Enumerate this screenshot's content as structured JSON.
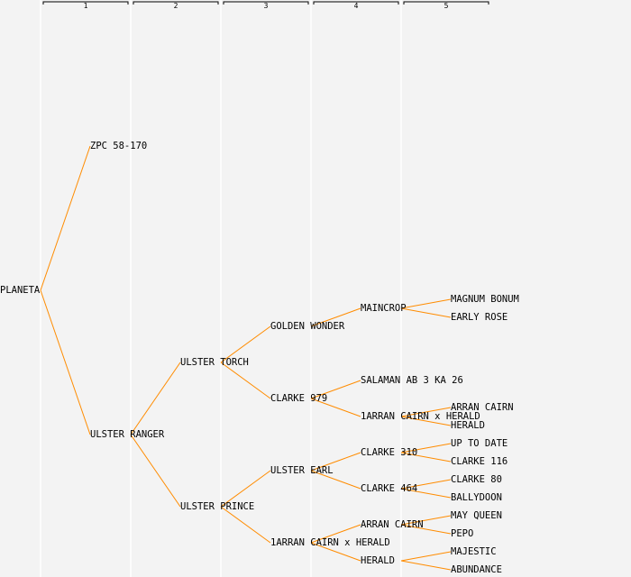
{
  "header": {
    "generations": [
      "1",
      "2",
      "3",
      "4",
      "5"
    ]
  },
  "colors": {
    "line": "#ff8c00",
    "text": "#000000",
    "highlight": "#0000ff",
    "background": "#f3f3f3",
    "separator": "#ffffff"
  },
  "tree": {
    "label": "PLANETA",
    "parents": [
      {
        "label": "ZPC 58-170",
        "parents": [
          null,
          null
        ]
      },
      {
        "label": "ULSTER RANGER",
        "parents": [
          {
            "label": "ULSTER TORCH",
            "parents": [
              {
                "label": "GOLDEN WONDER",
                "parents": [
                  {
                    "label": "MAINCROP",
                    "parents": [
                      {
                        "label": "MAGNUM BONUM"
                      },
                      {
                        "label": "EARLY ROSE"
                      }
                    ]
                  },
                  null
                ]
              },
              {
                "label": "CLARKE 979",
                "parents": [
                  {
                    "label": "SALAMAN AB 3 KA 26",
                    "parents": [
                      null,
                      null
                    ]
                  },
                  {
                    "label": "1ARRAN CAIRN x HERALD",
                    "parents": [
                      {
                        "label": "ARRAN CAIRN"
                      },
                      {
                        "label": "HERALD"
                      }
                    ]
                  }
                ]
              }
            ]
          },
          {
            "label": "ULSTER PRINCE",
            "parents": [
              {
                "label": "ULSTER EARL",
                "highlight": true,
                "parents": [
                  {
                    "label": "CLARKE 310",
                    "parents": [
                      {
                        "label": "UP TO DATE"
                      },
                      {
                        "label": "CLARKE 116"
                      }
                    ]
                  },
                  {
                    "label": "CLARKE 464",
                    "parents": [
                      {
                        "label": "CLARKE 80"
                      },
                      {
                        "label": "BALLYDOON"
                      }
                    ]
                  }
                ]
              },
              {
                "label": "1ARRAN CAIRN x HERALD",
                "parents": [
                  {
                    "label": "ARRAN CAIRN",
                    "parents": [
                      {
                        "label": "MAY QUEEN"
                      },
                      {
                        "label": "PEPO"
                      }
                    ]
                  },
                  {
                    "label": "HERALD",
                    "parents": [
                      {
                        "label": "MAJESTIC"
                      },
                      {
                        "label": "ABUNDANCE"
                      }
                    ]
                  }
                ]
              }
            ]
          }
        ]
      }
    ]
  }
}
